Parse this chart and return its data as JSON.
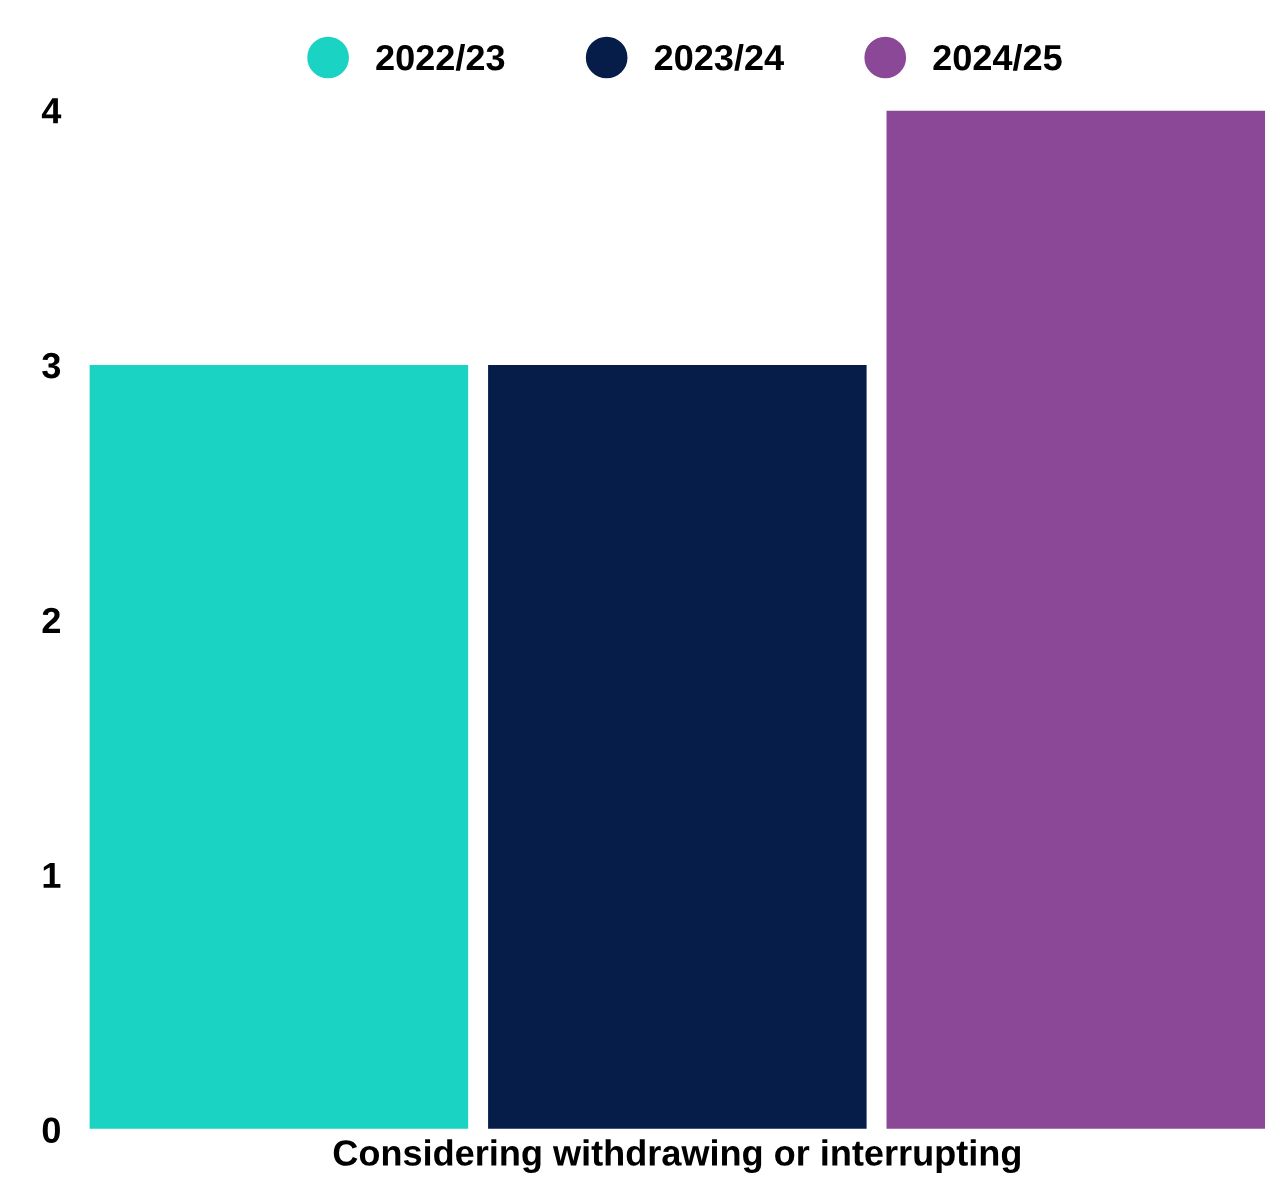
{
  "chart_data": {
    "type": "bar",
    "categories": [
      "Considering withdrawing or interrupting"
    ],
    "series": [
      {
        "name": "2022/23",
        "color": "#1ad3c3",
        "values": [
          3
        ]
      },
      {
        "name": "2023/24",
        "color": "#061d4a",
        "values": [
          3
        ]
      },
      {
        "name": "2024/25",
        "color": "#8b4896",
        "values": [
          4
        ]
      }
    ],
    "ylim": [
      0,
      4
    ],
    "yticks": [
      0,
      1,
      2,
      3,
      4
    ],
    "grid": false,
    "legend": "top"
  }
}
